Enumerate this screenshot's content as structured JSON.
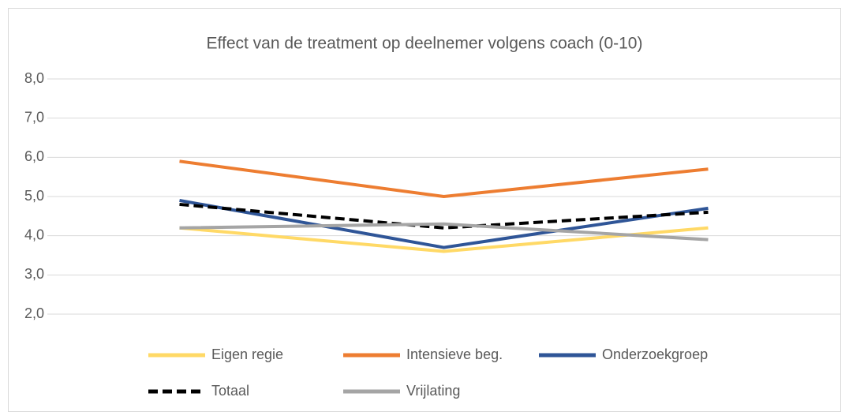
{
  "chart_data": {
    "type": "line",
    "title": "Effect van de treatment op deelnemer volgens coach (0-10)",
    "categories": [
      null,
      null,
      null
    ],
    "series": [
      {
        "name": "Eigen regie",
        "color": "#ffd966",
        "values": [
          4.2,
          3.6,
          4.2
        ]
      },
      {
        "name": "Intensieve beg.",
        "color": "#ed7d31",
        "values": [
          5.9,
          5.0,
          5.7
        ]
      },
      {
        "name": "Onderzoekgroep",
        "color": "#2f5597",
        "values": [
          4.9,
          3.7,
          4.7
        ]
      },
      {
        "name": "Totaal",
        "color": "#000000",
        "dashed": true,
        "values": [
          4.8,
          4.2,
          4.6
        ]
      },
      {
        "name": "Vrijlating",
        "color": "#a5a5a5",
        "values": [
          4.2,
          4.3,
          3.9
        ]
      }
    ],
    "ylim": [
      2,
      8
    ],
    "yticks": [
      {
        "value": 2,
        "label": "2,0"
      },
      {
        "value": 3,
        "label": "3,0"
      },
      {
        "value": 4,
        "label": "4,0"
      },
      {
        "value": 5,
        "label": "5,0"
      },
      {
        "value": 6,
        "label": "6,0"
      },
      {
        "value": 7,
        "label": "7,0"
      },
      {
        "value": 8,
        "label": "8,0"
      }
    ],
    "grid": true,
    "legend": "bottom"
  }
}
